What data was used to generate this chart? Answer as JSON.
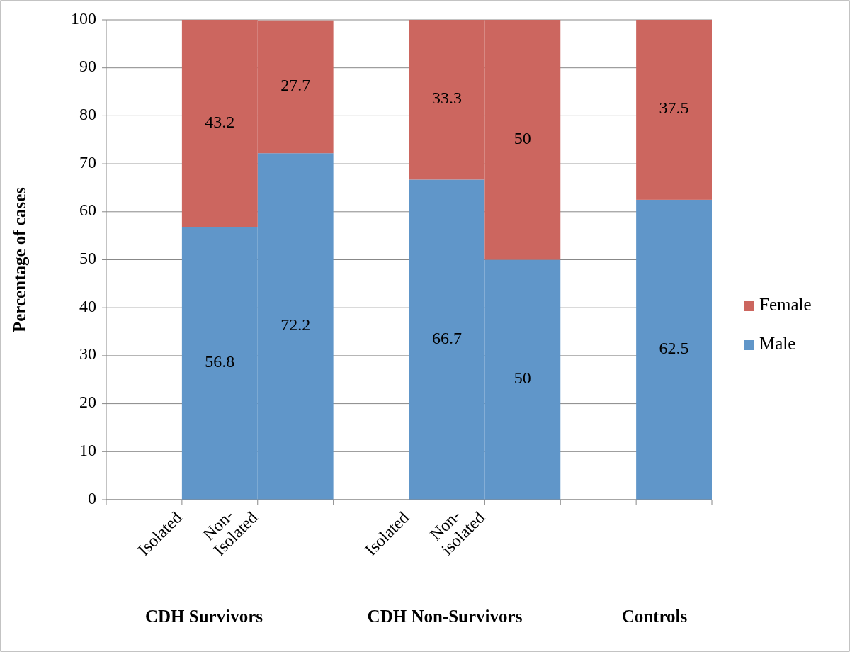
{
  "chart_data": {
    "type": "bar",
    "stacked": true,
    "ylabel": "Percentage of cases",
    "categories": [
      "Isolated",
      "Non-Isolated",
      null,
      "Isolated",
      "Non-isolated",
      null,
      null,
      null
    ],
    "series": [
      {
        "name": "Male",
        "color": "#6096c9",
        "values": [
          null,
          56.8,
          72.2,
          null,
          66.7,
          50,
          null,
          62.5
        ]
      },
      {
        "name": "Female",
        "color": "#cc665f",
        "values": [
          null,
          43.2,
          27.7,
          null,
          33.3,
          50,
          null,
          37.5
        ]
      }
    ],
    "ylim": [
      0,
      100
    ],
    "yticks": [
      0,
      10,
      20,
      30,
      40,
      50,
      60,
      70,
      80,
      90,
      100
    ],
    "grid": "y",
    "legend": "right",
    "data_labels": true,
    "annotations": [
      "CDH Survivors",
      "CDH Non-Survivors",
      "Controls"
    ]
  }
}
